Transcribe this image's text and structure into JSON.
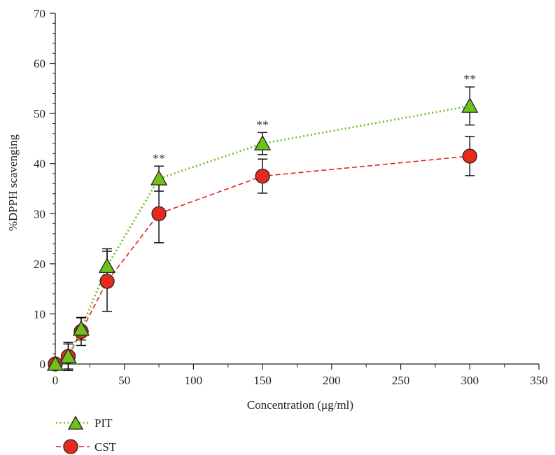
{
  "chart_data": {
    "type": "line",
    "xlabel": "Concentration (μg/ml)",
    "ylabel": "%DPPH scavenging",
    "xlim": [
      0,
      350
    ],
    "ylim": [
      0,
      70
    ],
    "x_ticks": [
      "0",
      "50",
      "100",
      "150",
      "200",
      "250",
      "300",
      "350"
    ],
    "y_ticks": [
      "0",
      "10",
      "20",
      "30",
      "40",
      "50",
      "60",
      "70"
    ],
    "grid": false,
    "legend_position": "bottom-left",
    "series": [
      {
        "name": "PIT",
        "marker": "triangle",
        "line_style": "dotted",
        "line_color": "#6fc21a",
        "marker_fill": "#6fc21a",
        "x": [
          0,
          9.375,
          18.75,
          37.5,
          75,
          150,
          300
        ],
        "y": [
          0,
          1.5,
          7.0,
          19.5,
          37.0,
          44.0,
          51.5
        ],
        "error": [
          0,
          2.8,
          2.2,
          3.5,
          2.5,
          2.2,
          3.8
        ],
        "significance": [
          "",
          "",
          "",
          "",
          "**",
          "**",
          "**"
        ]
      },
      {
        "name": "CST",
        "marker": "circle",
        "line_style": "dashed",
        "line_color": "#e02020",
        "marker_fill": "#e82a1e",
        "x": [
          0,
          9.375,
          18.75,
          37.5,
          75,
          150,
          300
        ],
        "y": [
          0,
          1.5,
          6.5,
          16.5,
          30.0,
          37.5,
          41.5
        ],
        "error": [
          0,
          2.5,
          2.8,
          6.0,
          5.8,
          3.4,
          3.9
        ]
      }
    ]
  },
  "legend": {
    "pit_label": "PIT",
    "cst_label": "CST"
  }
}
